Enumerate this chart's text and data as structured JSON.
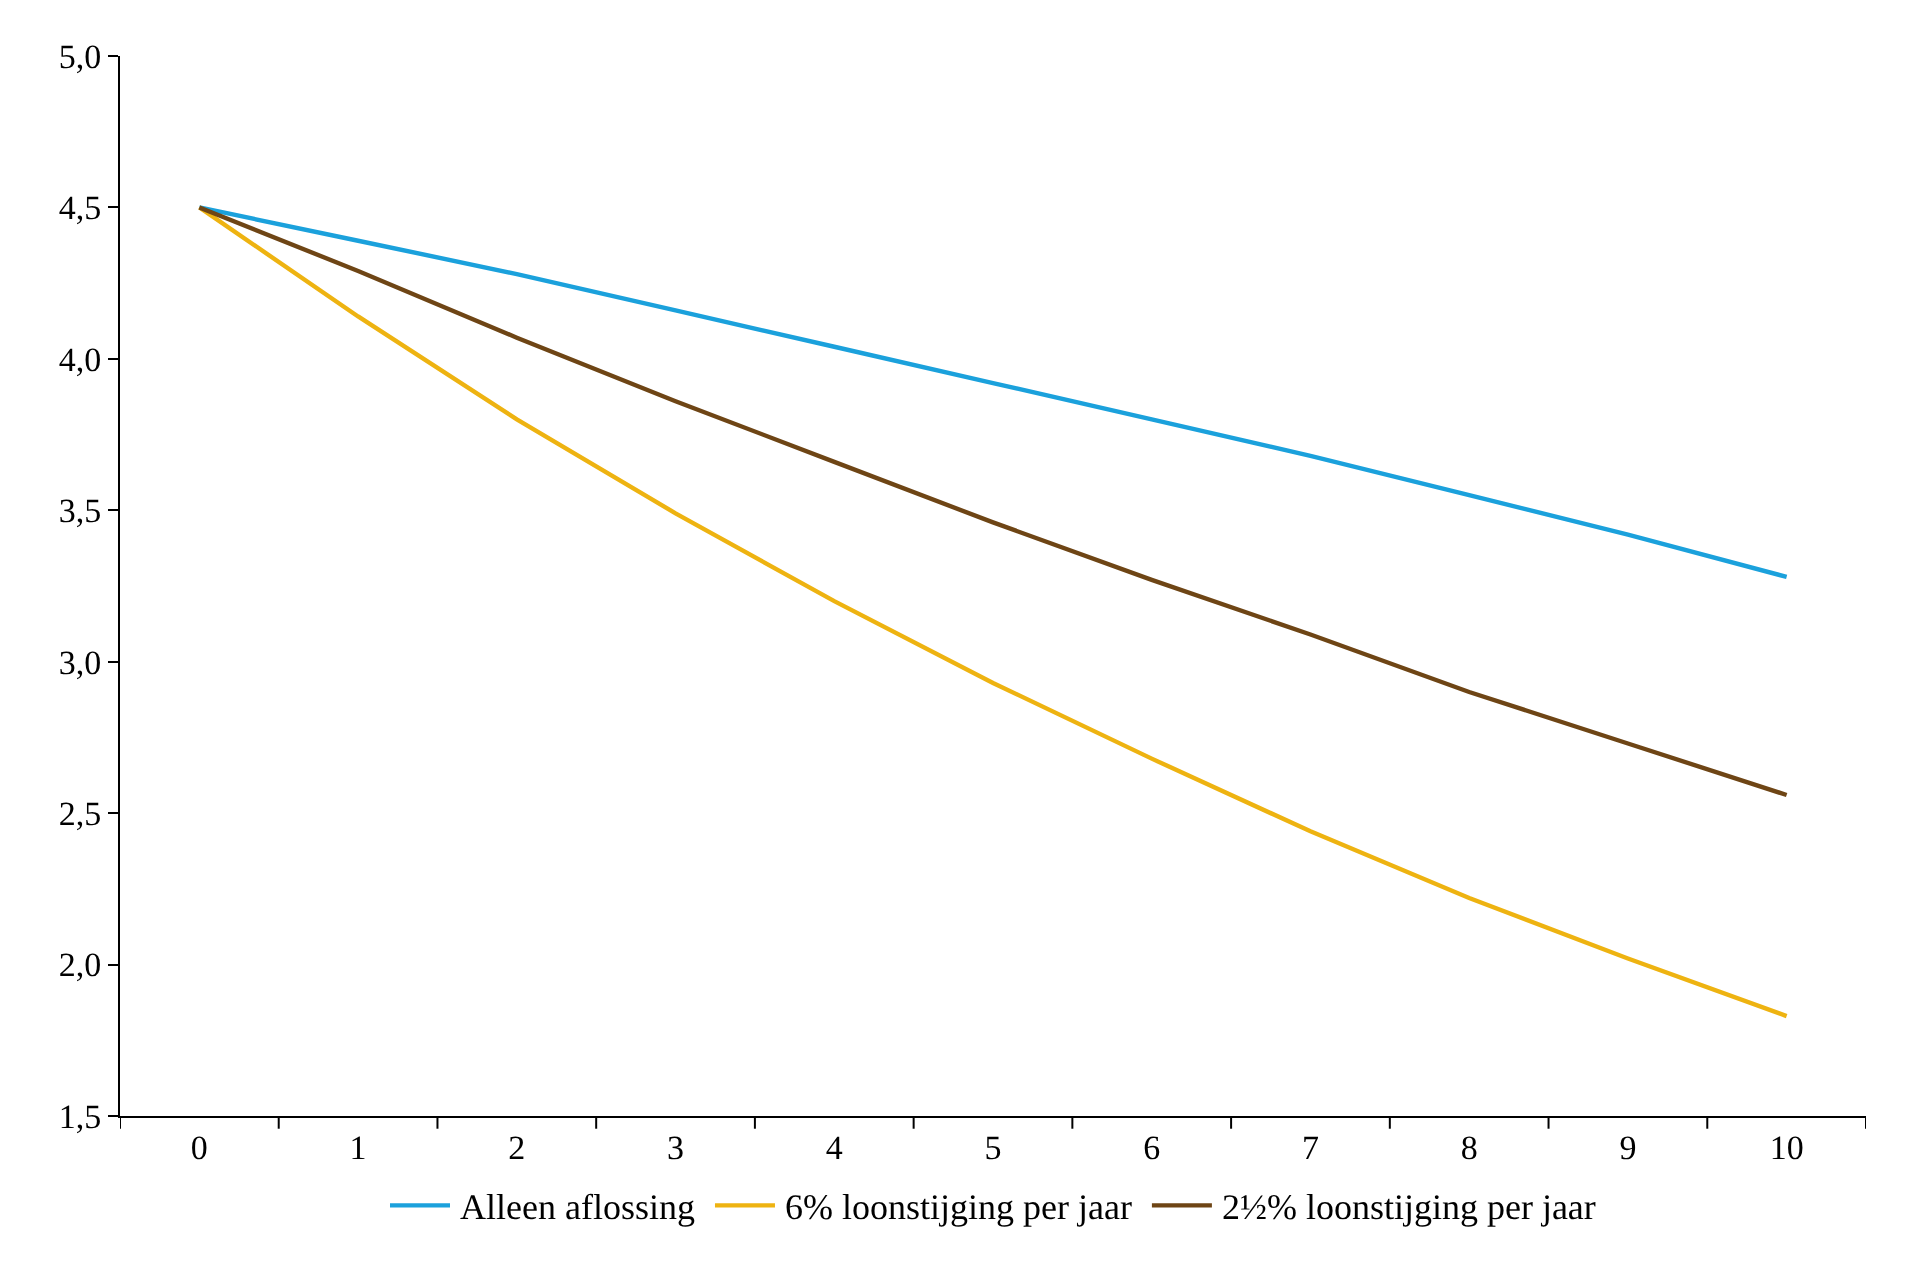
{
  "chart_data": {
    "type": "line",
    "categories": [
      "0",
      "1",
      "2",
      "3",
      "4",
      "5",
      "6",
      "7",
      "8",
      "9",
      "10"
    ],
    "series": [
      {
        "name": "Alleen aflossing",
        "color": "#1ba1dc",
        "values": [
          4.5,
          4.39,
          4.28,
          4.16,
          4.04,
          3.92,
          3.8,
          3.68,
          3.55,
          3.42,
          3.28
        ]
      },
      {
        "name": "6% loonstijging per jaar",
        "color": "#eeb311",
        "values": [
          4.5,
          4.14,
          3.8,
          3.49,
          3.2,
          2.93,
          2.68,
          2.44,
          2.22,
          2.02,
          1.83
        ]
      },
      {
        "name": "2½% loonstijging per jaar",
        "color": "#6e4515",
        "values": [
          4.5,
          4.29,
          4.07,
          3.86,
          3.66,
          3.46,
          3.27,
          3.09,
          2.9,
          2.73,
          2.56
        ]
      }
    ],
    "ylim": [
      1.5,
      5.0
    ],
    "yticks": [
      {
        "value": 1.5,
        "label": "1,5"
      },
      {
        "value": 2.0,
        "label": "2,0"
      },
      {
        "value": 2.5,
        "label": "2,5"
      },
      {
        "value": 3.0,
        "label": "3,0"
      },
      {
        "value": 3.5,
        "label": "3,5"
      },
      {
        "value": 4.0,
        "label": "4,0"
      },
      {
        "value": 4.5,
        "label": "4,5"
      },
      {
        "value": 5.0,
        "label": "5,0"
      }
    ],
    "legend": "bottom",
    "marker": "none",
    "line_style": "solid"
  }
}
